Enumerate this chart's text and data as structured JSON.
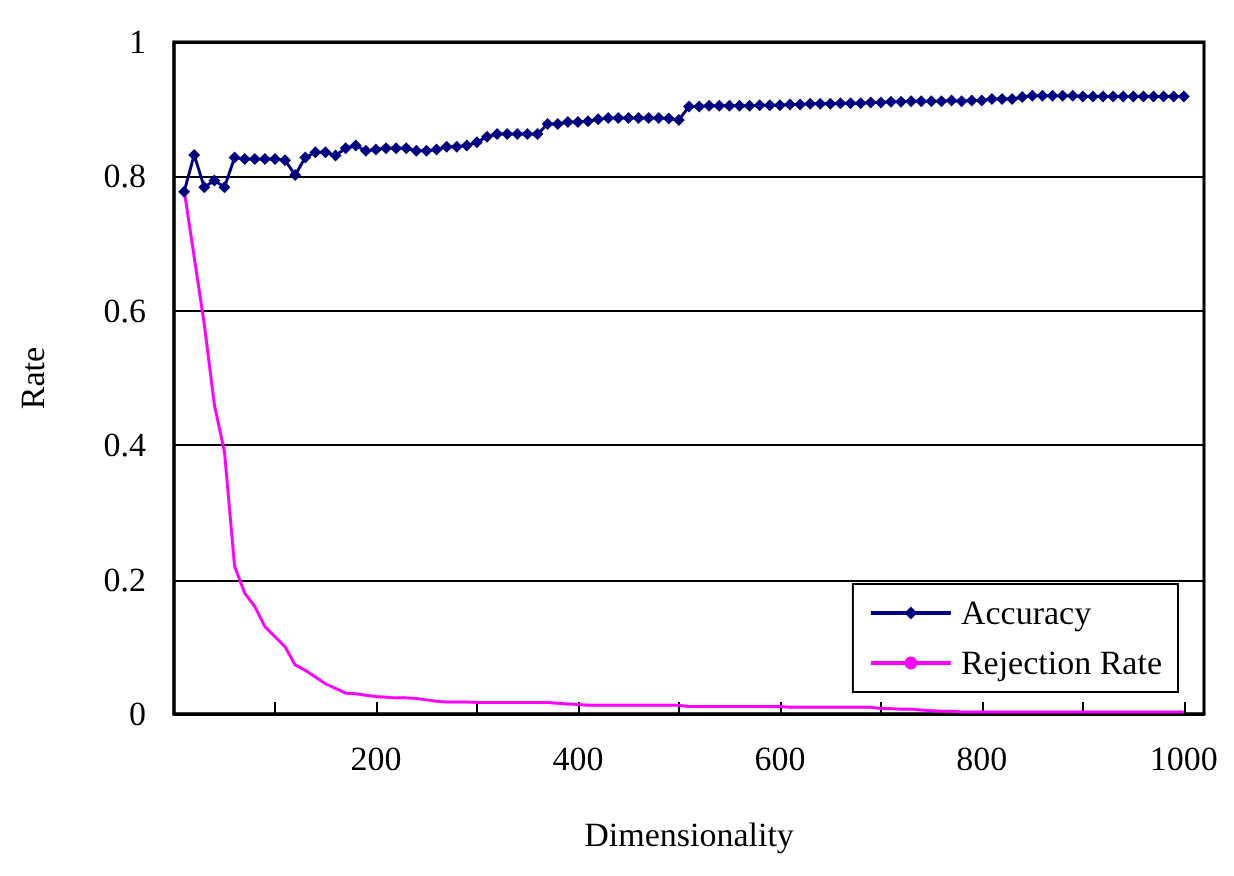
{
  "chart_data": {
    "type": "line",
    "xlabel": "Dimensionality",
    "ylabel": "Rate",
    "x": [
      10,
      20,
      30,
      40,
      50,
      60,
      70,
      80,
      90,
      100,
      110,
      120,
      130,
      140,
      150,
      160,
      170,
      180,
      190,
      200,
      210,
      220,
      230,
      240,
      250,
      260,
      270,
      280,
      290,
      300,
      310,
      320,
      330,
      340,
      350,
      360,
      370,
      380,
      390,
      400,
      410,
      420,
      430,
      440,
      450,
      460,
      470,
      480,
      490,
      500,
      510,
      520,
      530,
      540,
      550,
      560,
      570,
      580,
      590,
      600,
      610,
      620,
      630,
      640,
      650,
      660,
      670,
      680,
      690,
      700,
      710,
      720,
      730,
      740,
      750,
      760,
      770,
      780,
      790,
      800,
      810,
      820,
      830,
      840,
      850,
      860,
      870,
      880,
      890,
      900,
      910,
      920,
      930,
      940,
      950,
      960,
      970,
      980,
      990,
      1000
    ],
    "series": [
      {
        "name": "Accuracy",
        "color": "#000080",
        "marker": "diamond",
        "values": [
          0.777,
          0.832,
          0.784,
          0.794,
          0.784,
          0.828,
          0.826,
          0.826,
          0.826,
          0.826,
          0.824,
          0.802,
          0.828,
          0.836,
          0.836,
          0.831,
          0.842,
          0.846,
          0.838,
          0.84,
          0.842,
          0.842,
          0.842,
          0.838,
          0.838,
          0.84,
          0.844,
          0.844,
          0.846,
          0.851,
          0.859,
          0.863,
          0.863,
          0.863,
          0.863,
          0.863,
          0.878,
          0.878,
          0.881,
          0.881,
          0.882,
          0.885,
          0.887,
          0.887,
          0.887,
          0.887,
          0.887,
          0.887,
          0.886,
          0.884,
          0.904,
          0.904,
          0.905,
          0.905,
          0.905,
          0.905,
          0.905,
          0.906,
          0.906,
          0.906,
          0.907,
          0.907,
          0.908,
          0.908,
          0.908,
          0.909,
          0.909,
          0.909,
          0.91,
          0.91,
          0.911,
          0.911,
          0.912,
          0.912,
          0.912,
          0.912,
          0.913,
          0.912,
          0.913,
          0.913,
          0.915,
          0.915,
          0.915,
          0.918,
          0.92,
          0.92,
          0.92,
          0.92,
          0.92,
          0.919,
          0.919,
          0.919,
          0.919,
          0.919,
          0.919,
          0.919,
          0.919,
          0.919,
          0.919,
          0.919
        ]
      },
      {
        "name": "Rejection Rate",
        "color": "#ff00ff",
        "marker": "none",
        "values": [
          0.78,
          0.68,
          0.58,
          0.46,
          0.39,
          0.22,
          0.18,
          0.16,
          0.13,
          0.115,
          0.1,
          0.073,
          0.065,
          0.055,
          0.045,
          0.038,
          0.031,
          0.03,
          0.028,
          0.026,
          0.025,
          0.024,
          0.024,
          0.023,
          0.021,
          0.019,
          0.018,
          0.018,
          0.018,
          0.017,
          0.017,
          0.017,
          0.017,
          0.017,
          0.017,
          0.017,
          0.017,
          0.016,
          0.015,
          0.014,
          0.013,
          0.013,
          0.013,
          0.013,
          0.013,
          0.013,
          0.013,
          0.013,
          0.013,
          0.013,
          0.011,
          0.011,
          0.011,
          0.011,
          0.011,
          0.011,
          0.011,
          0.011,
          0.011,
          0.011,
          0.01,
          0.01,
          0.01,
          0.01,
          0.01,
          0.01,
          0.01,
          0.01,
          0.01,
          0.008,
          0.008,
          0.007,
          0.007,
          0.006,
          0.005,
          0.004,
          0.004,
          0.003,
          0.003,
          0.003,
          0.003,
          0.003,
          0.003,
          0.003,
          0.003,
          0.003,
          0.003,
          0.003,
          0.003,
          0.003,
          0.003,
          0.003,
          0.003,
          0.003,
          0.003,
          0.003,
          0.003,
          0.003,
          0.003,
          0.003
        ]
      }
    ],
    "xlim": [
      0,
      1020
    ],
    "xticks": [
      {
        "value": 100,
        "label": null
      },
      200,
      {
        "value": 300,
        "label": null
      },
      400,
      {
        "value": 500,
        "label": null
      },
      600,
      {
        "value": 700,
        "label": null
      },
      800,
      {
        "value": 900,
        "label": null
      },
      1000
    ],
    "ylim": [
      0,
      1
    ],
    "yticks": [
      0,
      0.2,
      0.4,
      0.6,
      0.8,
      1
    ],
    "grid": "y",
    "legend": "bottom right",
    "line_style": "solid"
  }
}
